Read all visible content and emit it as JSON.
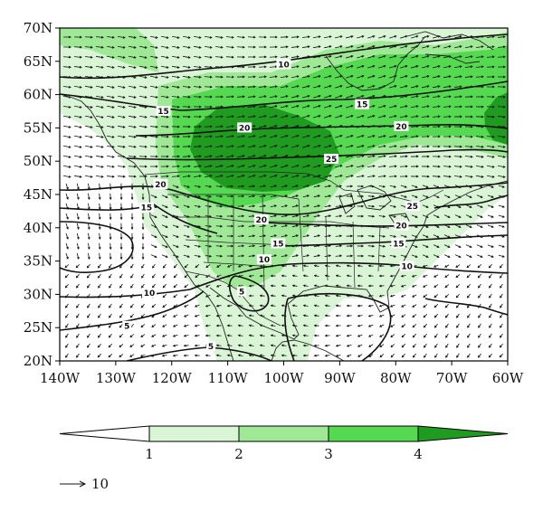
{
  "map": {
    "lat_labels": [
      "70N",
      "65N",
      "60N",
      "55N",
      "50N",
      "45N",
      "40N",
      "35N",
      "30N",
      "25N",
      "20N"
    ],
    "lon_labels": [
      "140W",
      "130W",
      "120W",
      "110W",
      "100W",
      "90W",
      "80W",
      "70W",
      "60W"
    ],
    "lat_range": [
      20,
      70
    ],
    "lon_range": [
      -140,
      -60
    ],
    "contour_labels": [
      {
        "text": "10",
        "lon": -100,
        "lat": 64.5
      },
      {
        "text": "15",
        "lon": -121.5,
        "lat": 57.5
      },
      {
        "text": "15",
        "lon": -86,
        "lat": 58.5
      },
      {
        "text": "20",
        "lon": -107,
        "lat": 55
      },
      {
        "text": "20",
        "lon": -79,
        "lat": 55.2
      },
      {
        "text": "25",
        "lon": -91.5,
        "lat": 50.3
      },
      {
        "text": "20",
        "lon": -122,
        "lat": 46.5
      },
      {
        "text": "15",
        "lon": -124.5,
        "lat": 43
      },
      {
        "text": "20",
        "lon": -104,
        "lat": 41.2
      },
      {
        "text": "25",
        "lon": -77,
        "lat": 43.2
      },
      {
        "text": "20",
        "lon": -79,
        "lat": 40.3
      },
      {
        "text": "15",
        "lon": -101,
        "lat": 37.6
      },
      {
        "text": "15",
        "lon": -79.5,
        "lat": 37.6
      },
      {
        "text": "10",
        "lon": -103.5,
        "lat": 35.2
      },
      {
        "text": "10",
        "lon": -78,
        "lat": 34.2
      },
      {
        "text": "10",
        "lon": -124,
        "lat": 30.2
      },
      {
        "text": "5",
        "lon": -107.5,
        "lat": 30.4
      },
      {
        "text": "5",
        "lon": -128,
        "lat": 25.2
      },
      {
        "text": "5",
        "lon": -113,
        "lat": 22.2
      }
    ],
    "shading_colors": [
      "#ffffff",
      "#d9f5d5",
      "#9ee896",
      "#55d950",
      "#1f9c1f"
    ]
  },
  "colorbar": {
    "labels": [
      "1",
      "2",
      "3",
      "4"
    ],
    "colors": [
      "#ffffff",
      "#d9f5d5",
      "#9ee896",
      "#55d950",
      "#1f9c1f"
    ]
  },
  "vector_key": {
    "value": "10"
  }
}
